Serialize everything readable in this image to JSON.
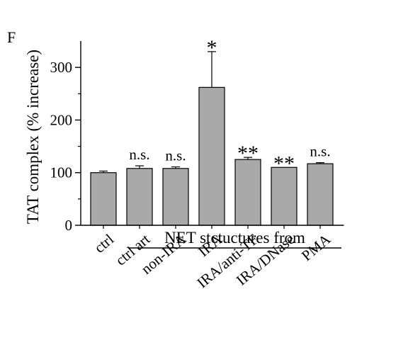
{
  "panel_label": "F",
  "chart_data": {
    "type": "bar",
    "ylabel": "TAT complex (% increase)",
    "ylim": [
      0,
      350
    ],
    "yticks": [
      0,
      100,
      200,
      300
    ],
    "categories": [
      "ctrl",
      "ctrl art",
      "non-IRA",
      "IRA",
      "IRA/anti-TF",
      "IRA/DNase",
      "PMA"
    ],
    "values": [
      100,
      108,
      108,
      262,
      125,
      110,
      117
    ],
    "errors": [
      3,
      5,
      3,
      68,
      4,
      0,
      2
    ],
    "significance": [
      "",
      "n.s.",
      "n.s.",
      "*",
      "**",
      "**",
      "n.s."
    ],
    "group_label": "NET stctuctures from",
    "group_start_category": "ctrl art",
    "group_end_category": "PMA",
    "bar_color": "#a9a9a9",
    "grid": false
  }
}
